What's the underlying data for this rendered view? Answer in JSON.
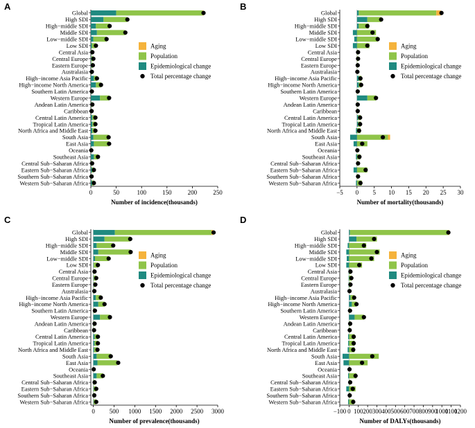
{
  "figure": {
    "legend_labels": [
      "Aging",
      "Population",
      "Epidemiological change",
      "Total percentage change"
    ]
  },
  "colors": {
    "aging": "#f5b33c",
    "population": "#8fc449",
    "epidemiological": "#1f8a80",
    "total": "#000000",
    "zero_line": "#888888"
  },
  "chart_data": [
    {
      "type": "bar",
      "panel_label": "A",
      "title": "",
      "xlabel": "Number of incidence(thousands)",
      "ylabel": "",
      "xlim": [
        0,
        250
      ],
      "xticks": [
        0,
        50,
        100,
        150,
        200,
        250
      ],
      "categories": [
        "Global",
        "High SDI",
        "High−middle SDI",
        "Middle SDI",
        "Low−middle SDI",
        "Low SDI",
        "Central Asia",
        "Central Europe",
        "Eastern Europe",
        "Australasia",
        "High−income Asia Pacific",
        "High−income North America",
        "Southern Latin America",
        "Western Europe",
        "Andean Latin America",
        "Caribbean",
        "Central Latin America",
        "Tropical Latin America",
        "North Africa and Middle East",
        "South Asia",
        "East Asia",
        "Oceania",
        "Southeast Asia",
        "Central Sub−Saharan Africa",
        "Eastern Sub−Saharan Africa",
        "Southern Sub−Saharan Africa",
        "Western Sub−Saharan Africa"
      ],
      "series": [
        {
          "name": "Epidemiological change",
          "values": [
            50,
            25,
            10,
            12,
            5,
            2,
            1,
            1,
            1,
            0.5,
            6,
            10,
            1,
            18,
            1,
            0.5,
            3,
            3,
            3,
            5,
            6,
            0,
            6,
            0.5,
            2,
            0.5,
            2
          ]
        },
        {
          "name": "Population",
          "values": [
            170,
            47,
            27,
            56,
            26,
            8,
            2,
            4,
            3,
            1.5,
            6,
            10,
            1,
            18,
            2,
            1,
            6,
            6,
            6,
            30,
            30,
            1,
            8,
            2,
            4,
            1,
            4
          ]
        },
        {
          "name": "Aging",
          "values": [
            2,
            0,
            0,
            0,
            0,
            0,
            0,
            0,
            0,
            0,
            0,
            0,
            0,
            0,
            0,
            0,
            0,
            0,
            0,
            0,
            0,
            0,
            0,
            0,
            0,
            0,
            0
          ]
        }
      ],
      "total": [
        222,
        72,
        37,
        68,
        31,
        10,
        3,
        5,
        4,
        2,
        12,
        20,
        2,
        36,
        3,
        1.5,
        9,
        9,
        9,
        35,
        36,
        1,
        14,
        2.5,
        6,
        1.5,
        6
      ]
    },
    {
      "type": "bar",
      "panel_label": "B",
      "title": "",
      "xlabel": "Number of mortality(thousands)",
      "ylabel": "",
      "xlim": [
        -5,
        30
      ],
      "xticks": [
        -5,
        0,
        5,
        10,
        15,
        20,
        25,
        30
      ],
      "categories": [
        "Global",
        "High SDI",
        "High−middle SDI",
        "Middle SDI",
        "Low−middle SDI",
        "Low SDI",
        "Central Asia",
        "Central Europe",
        "Eastern Europe",
        "Australasia",
        "High−income Asia Pacific",
        "High−income North America",
        "Southern Latin America",
        "Western Europe",
        "Andean Latin America",
        "Caribbean",
        "Central Latin America",
        "Tropical Latin America",
        "North Africa and Middle East",
        "South Asia",
        "East Asia",
        "Oceania",
        "Southeast Asia",
        "Central Sub−Saharan Africa",
        "Eastern Sub−Saharan Africa",
        "Southern Sub−Saharan Africa",
        "Western Sub−Saharan Africa"
      ],
      "series": [
        {
          "name": "Epidemiological change",
          "values": [
            0.5,
            3,
            0.5,
            -1.2,
            -0.8,
            -1.2,
            0,
            0,
            0,
            0,
            0.5,
            0.5,
            0,
            3,
            0,
            0,
            0.3,
            0.3,
            -0.3,
            -2,
            -1,
            0,
            -0.3,
            0,
            -1,
            0,
            -0.3
          ]
        },
        {
          "name": "Population",
          "values": [
            22.5,
            4,
            3,
            5.5,
            6,
            3.6,
            0.3,
            0.3,
            0.2,
            0.1,
            0.8,
            0.8,
            0.2,
            2.5,
            0.2,
            0.2,
            0.8,
            0.8,
            1,
            9,
            3,
            0.1,
            1,
            0.3,
            3,
            0.3,
            1.4
          ]
        },
        {
          "name": "Aging",
          "values": [
            1.3,
            0,
            0,
            0,
            0,
            0,
            0,
            0,
            0,
            0,
            0,
            0,
            0,
            0,
            0,
            0,
            0,
            0,
            0,
            0.6,
            0,
            0,
            0,
            0,
            0,
            0,
            0
          ]
        }
      ],
      "total": [
        24.5,
        7,
        3,
        4.5,
        6,
        3,
        0.3,
        0.3,
        0.2,
        0.1,
        1,
        1.2,
        0.2,
        5.5,
        0.2,
        0.2,
        0.9,
        0.9,
        0.6,
        7.5,
        1.5,
        0.1,
        0.7,
        0.3,
        2.5,
        0.3,
        1
      ]
    },
    {
      "type": "bar",
      "panel_label": "C",
      "title": "",
      "xlabel": "Number of prevalence(thousands)",
      "ylabel": "",
      "xlim": [
        0,
        3000
      ],
      "xticks": [
        0,
        500,
        1000,
        1500,
        2000,
        2500,
        3000
      ],
      "categories": [
        "Global",
        "High SDI",
        "High−middle SDI",
        "Middle SDI",
        "Low−middle SDI",
        "Low SDI",
        "Central Asia",
        "Central Europe",
        "Eastern Europe",
        "Australasia",
        "High−income Asia Pacific",
        "High−income North America",
        "Southern Latin America",
        "Western Europe",
        "Andean Latin America",
        "Caribbean",
        "Central Latin America",
        "Tropical Latin America",
        "North Africa and Middle East",
        "South Asia",
        "East Asia",
        "Oceania",
        "Southeast Asia",
        "Central Sub−Saharan Africa",
        "Eastern Sub−Saharan Africa",
        "Southern Sub−Saharan Africa",
        "Western Sub−Saharan Africa"
      ],
      "series": [
        {
          "name": "Epidemiological change",
          "values": [
            520,
            270,
            80,
            120,
            40,
            10,
            5,
            10,
            8,
            5,
            60,
            120,
            8,
            160,
            5,
            3,
            30,
            30,
            20,
            80,
            100,
            0,
            80,
            3,
            10,
            3,
            10
          ]
        },
        {
          "name": "Population",
          "values": [
            2330,
            620,
            380,
            780,
            330,
            100,
            25,
            60,
            40,
            20,
            120,
            150,
            30,
            240,
            25,
            15,
            80,
            80,
            80,
            340,
            480,
            10,
            150,
            30,
            60,
            20,
            60
          ]
        },
        {
          "name": "Aging",
          "values": [
            40,
            0,
            0,
            0,
            0,
            0,
            0,
            0,
            0,
            0,
            0,
            0,
            0,
            0,
            0,
            0,
            0,
            0,
            0,
            0,
            0,
            0,
            0,
            0,
            0,
            0,
            0
          ]
        }
      ],
      "total": [
        2900,
        890,
        480,
        900,
        370,
        110,
        30,
        70,
        48,
        25,
        180,
        270,
        38,
        400,
        30,
        18,
        110,
        110,
        100,
        420,
        600,
        10,
        230,
        33,
        70,
        23,
        70
      ]
    },
    {
      "type": "bar",
      "panel_label": "D",
      "title": "",
      "xlabel": "Number of DALYs(thousands)",
      "ylabel": "",
      "xlim": [
        -100,
        1200
      ],
      "xticks": [
        -100,
        0,
        100,
        200,
        300,
        400,
        500,
        600,
        700,
        800,
        900,
        1000,
        1100,
        1200
      ],
      "categories": [
        "Global",
        "High SDI",
        "High−middle SDI",
        "Middle SDI",
        "Low−middle SDI",
        "Low SDI",
        "Central Asia",
        "Central Europe",
        "Eastern Europe",
        "Australasia",
        "High−income Asia Pacific",
        "High−income North America",
        "Southern Latin America",
        "Western Europe",
        "Andean Latin America",
        "Caribbean",
        "Central Latin America",
        "Tropical Latin America",
        "North Africa and Middle East",
        "South Asia",
        "East Asia",
        "Oceania",
        "Southeast Asia",
        "Central Sub−Saharan Africa",
        "Eastern Sub−Saharan Africa",
        "Southern Sub−Saharan Africa",
        "Western Sub−Saharan Africa"
      ],
      "series": [
        {
          "name": "Epidemiological change",
          "values": [
            10,
            80,
            -15,
            -30,
            -25,
            -30,
            -5,
            -5,
            -5,
            0,
            15,
            30,
            0,
            60,
            -3,
            -3,
            -10,
            -10,
            -15,
            -70,
            -60,
            0,
            -10,
            -3,
            -30,
            -3,
            -10
          ]
        },
        {
          "name": "Population",
          "values": [
            1060,
            220,
            185,
            330,
            270,
            140,
            20,
            30,
            20,
            5,
            40,
            50,
            10,
            100,
            15,
            10,
            60,
            60,
            60,
            320,
            200,
            5,
            80,
            15,
            70,
            10,
            55
          ]
        },
        {
          "name": "Aging",
          "values": [
            10,
            0,
            0,
            0,
            0,
            0,
            0,
            0,
            0,
            0,
            0,
            0,
            0,
            0,
            0,
            0,
            0,
            0,
            0,
            0,
            0,
            0,
            0,
            0,
            0,
            0,
            0
          ]
        }
      ],
      "total": [
        1070,
        270,
        160,
        300,
        240,
        110,
        15,
        25,
        15,
        5,
        55,
        80,
        10,
        160,
        12,
        7,
        50,
        50,
        45,
        250,
        140,
        5,
        70,
        12,
        40,
        7,
        45
      ]
    }
  ]
}
